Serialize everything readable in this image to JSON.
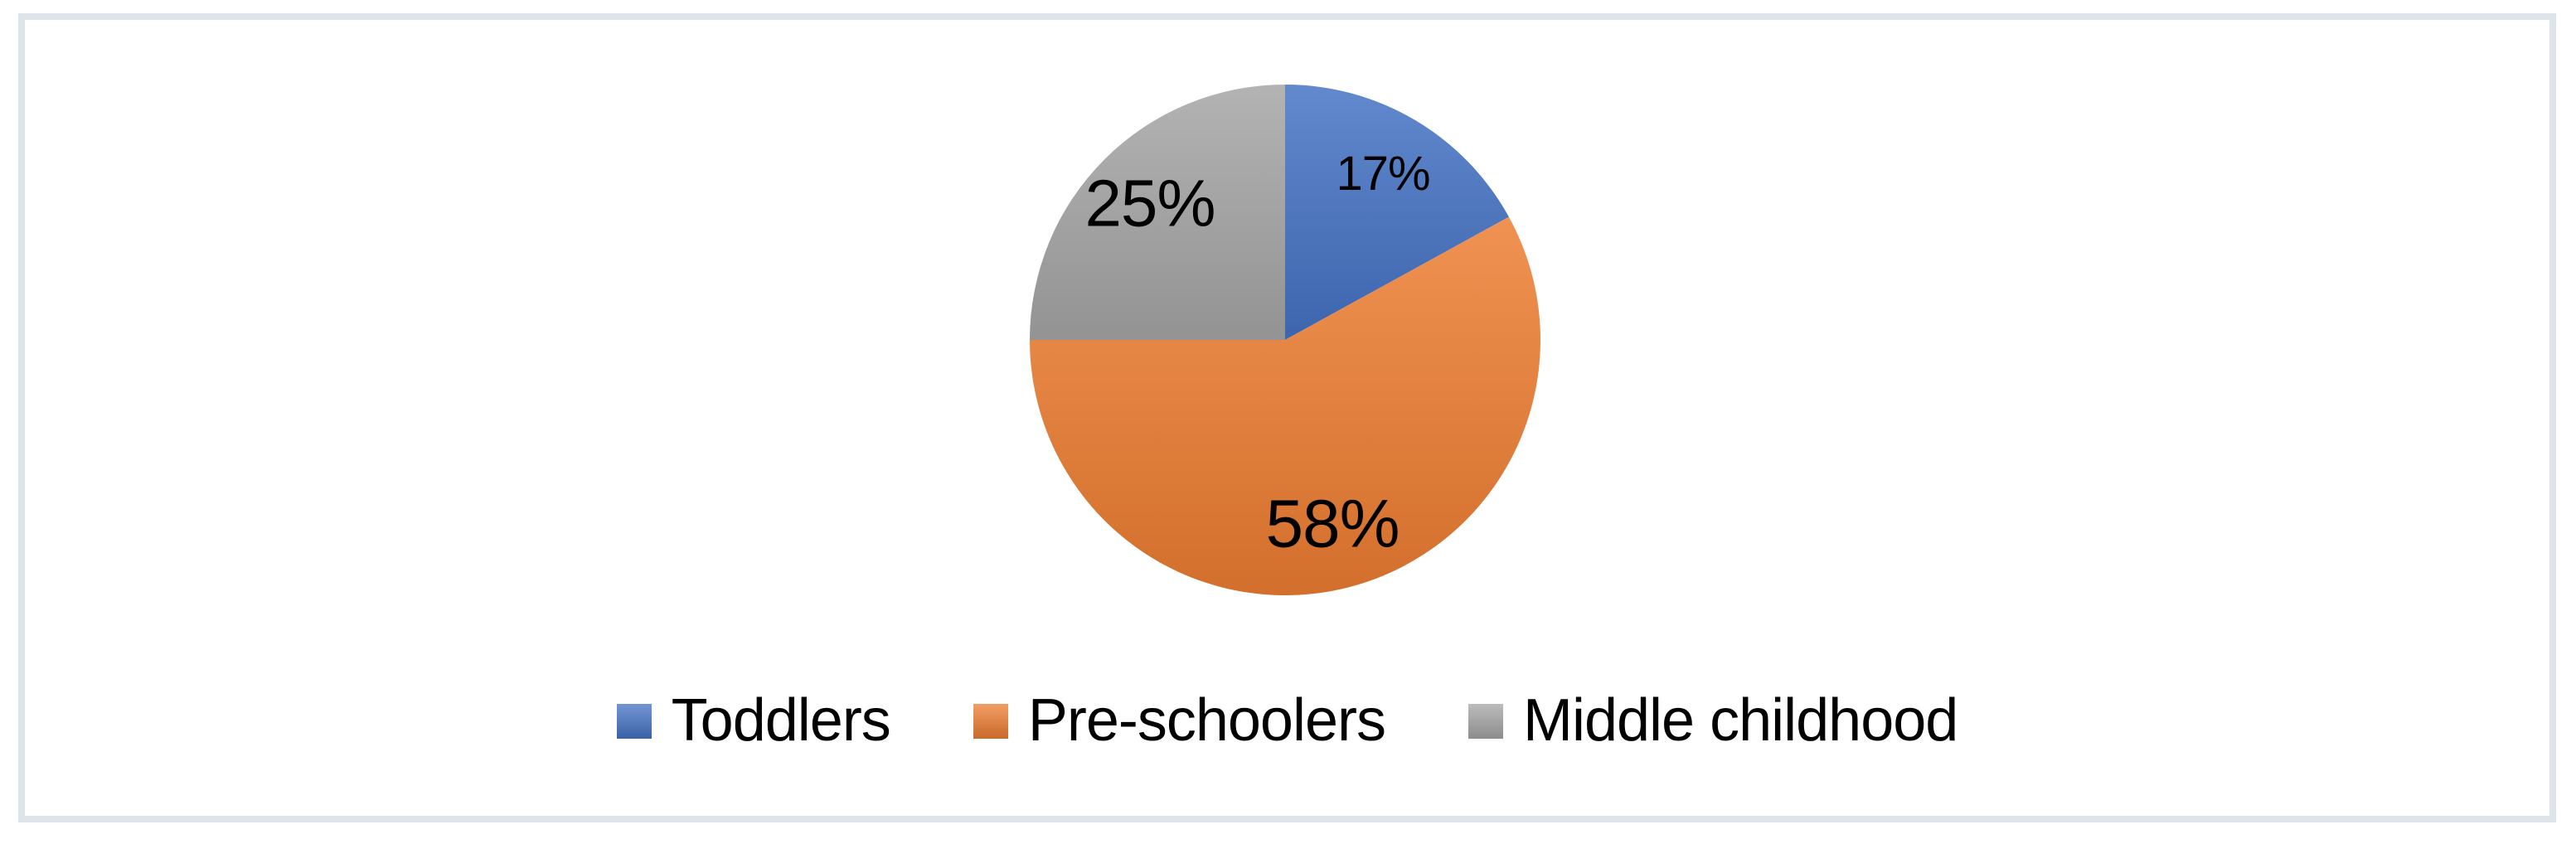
{
  "figure": {
    "background": "#ffffff",
    "border_color": "#dfe3ea"
  },
  "chart_data": {
    "type": "pie",
    "categories": [
      "Toddlers",
      "Pre-schoolers",
      "Middle childhood"
    ],
    "values": [
      17,
      58,
      25
    ],
    "data_labels": [
      "17%",
      "58%",
      "25%"
    ],
    "colors": [
      "#4472C4",
      "#ED7D31",
      "#A5A5A5"
    ],
    "label_color": "#000000",
    "start_angle_deg": 0,
    "direction": "clockwise",
    "labels_inside": true,
    "legend": {
      "position": "bottom",
      "items": [
        {
          "label": "Toddlers",
          "color": "#4472C4"
        },
        {
          "label": "Pre-schoolers",
          "color": "#ED7D31"
        },
        {
          "label": "Middle childhood",
          "color": "#A5A5A5"
        }
      ]
    }
  }
}
